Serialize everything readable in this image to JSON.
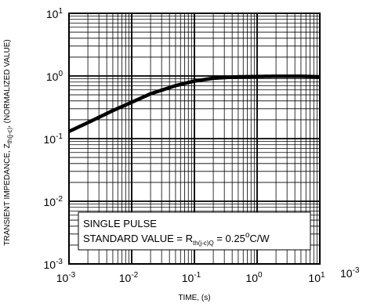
{
  "chart_data": {
    "type": "line",
    "xscale": "log",
    "yscale": "log",
    "xlim": [
      0.001,
      10
    ],
    "ylim": [
      0.001,
      10
    ],
    "grid": true,
    "xlabel": "TIME, (s)",
    "ylabel": {
      "prefix": "TRANSIENT IMPEDANCE, Z",
      "subscript": "th(j-c)",
      "suffix": ", (NORMALIZED VALUE)"
    },
    "x_ticks": [
      {
        "base": "10",
        "exp": "-3"
      },
      {
        "base": "10",
        "exp": "-2"
      },
      {
        "base": "10",
        "exp": "-1"
      },
      {
        "base": "10",
        "exp": "0"
      },
      {
        "base": "10",
        "exp": "1"
      }
    ],
    "y_ticks": [
      {
        "base": "10",
        "exp": "-3"
      },
      {
        "base": "10",
        "exp": "-2"
      },
      {
        "base": "10",
        "exp": "-1"
      },
      {
        "base": "10",
        "exp": "0"
      },
      {
        "base": "10",
        "exp": "1"
      }
    ],
    "x_end_label": {
      "base": "10",
      "exp": "-3"
    },
    "annotation": {
      "line1": "SINGLE PULSE",
      "line2_prefix": "STANDARD VALUE = R",
      "line2_subscript": "th(j-c)Q",
      "line2_suffix": " = 0.25",
      "line2_degree": "o",
      "line2_unit": "C/W"
    },
    "series": [
      {
        "x": [
          0.001,
          0.002,
          0.005,
          0.01,
          0.02,
          0.05,
          0.1,
          0.2,
          0.5,
          1,
          2,
          5,
          10
        ],
        "y": [
          0.13,
          0.18,
          0.28,
          0.38,
          0.52,
          0.7,
          0.83,
          0.92,
          0.97,
          0.98,
          0.99,
          0.99,
          0.97
        ]
      }
    ]
  }
}
